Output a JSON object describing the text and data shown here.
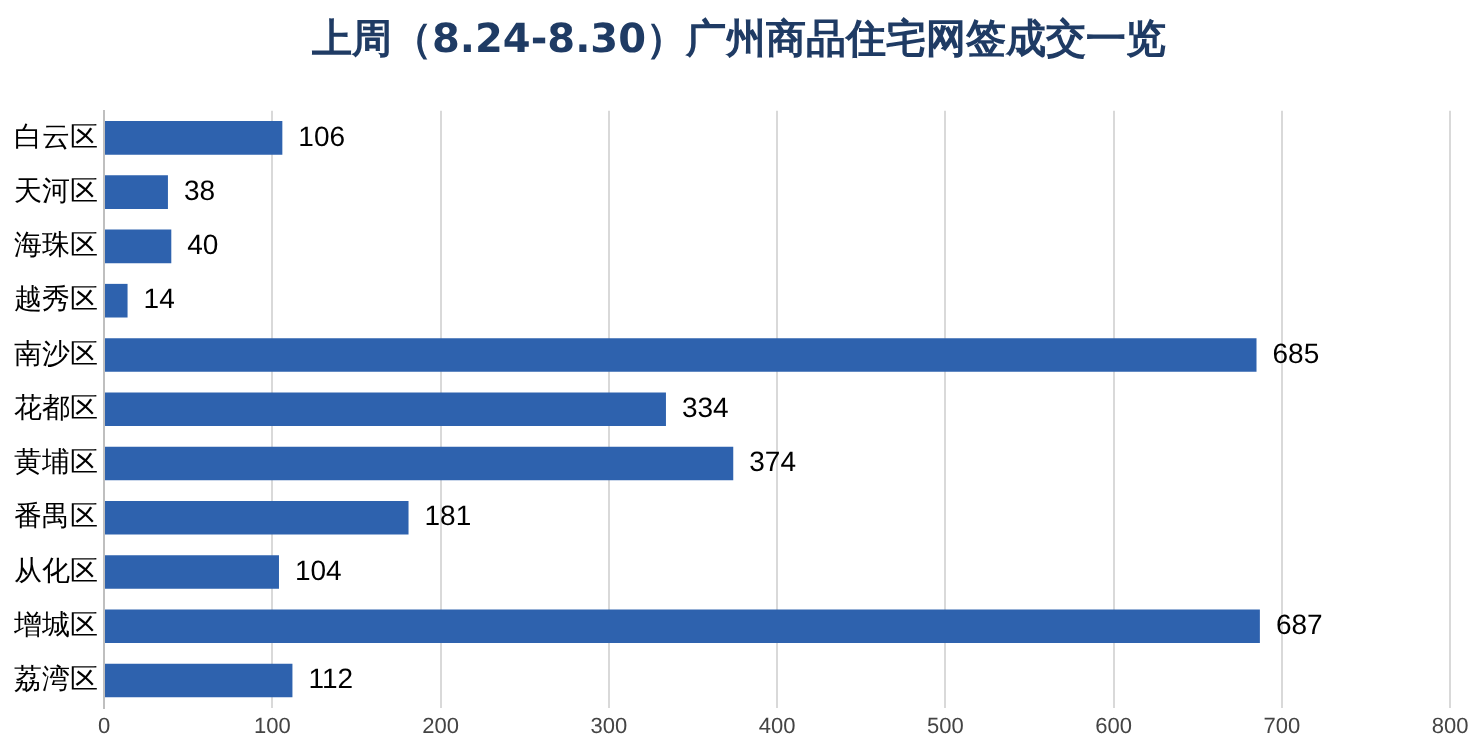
{
  "chart_data": {
    "type": "bar",
    "orientation": "horizontal",
    "title": "上周（8.24-8.30）广州商品住宅网签成交一览",
    "categories": [
      "白云区",
      "天河区",
      "海珠区",
      "越秀区",
      "南沙区",
      "花都区",
      "黄埔区",
      "番禺区",
      "从化区",
      "增城区",
      "荔湾区"
    ],
    "values": [
      106,
      38,
      40,
      14,
      685,
      334,
      374,
      181,
      104,
      687,
      112
    ],
    "color": "#2e62ae",
    "xlim": [
      0,
      800
    ],
    "xticks": [
      0,
      100,
      200,
      300,
      400,
      500,
      600,
      700,
      800
    ],
    "grid": "x",
    "data_labels": true,
    "legend": false
  }
}
